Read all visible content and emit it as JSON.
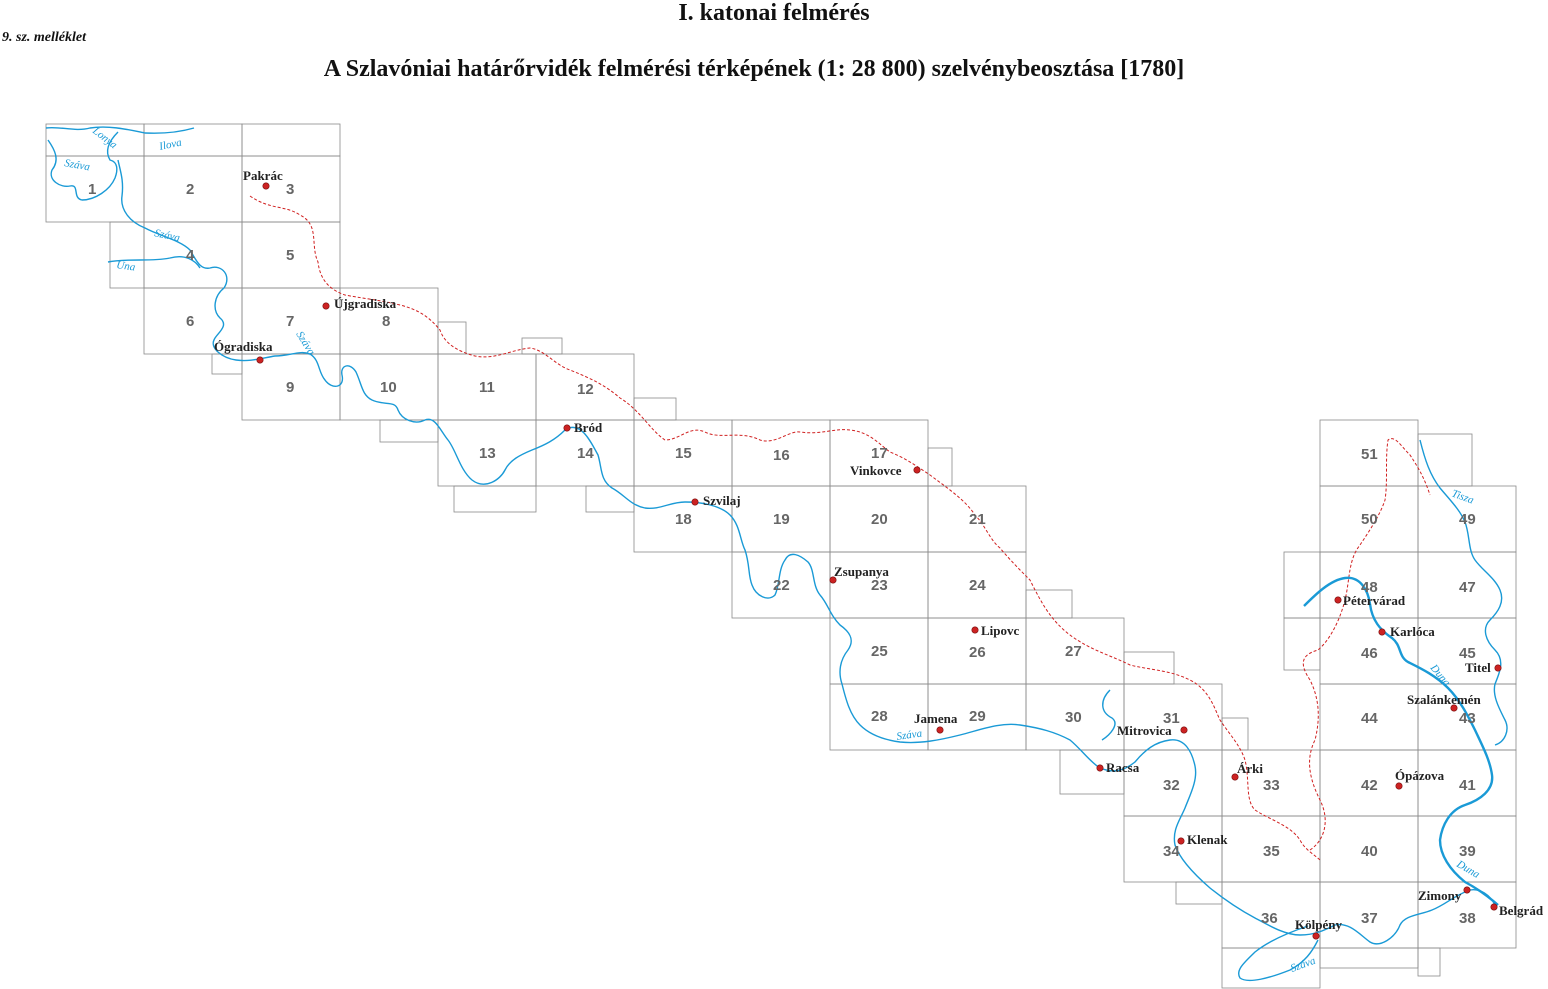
{
  "header": {
    "title": "I. katonai felmérés",
    "annex": "9. sz. melléklet",
    "subtitle": "A Szlavóniai határőrvidék  felmérési térképének (1: 28 800) szelvénybeosztása [1780]"
  },
  "colors": {
    "grid": "#8a8a8a",
    "river": "#1a9ad6",
    "border": "#d02020",
    "town": "#cc2222",
    "text": "#222222"
  },
  "sheets": [
    "1",
    "2",
    "3",
    "4",
    "5",
    "6",
    "7",
    "8",
    "9",
    "10",
    "11",
    "12",
    "13",
    "14",
    "15",
    "16",
    "17",
    "18",
    "19",
    "20",
    "21",
    "22",
    "23",
    "24",
    "25",
    "26",
    "27",
    "28",
    "29",
    "30",
    "31",
    "32",
    "33",
    "34",
    "35",
    "36",
    "37",
    "38",
    "39",
    "40",
    "41",
    "42",
    "43",
    "44",
    "45",
    "46",
    "47",
    "48",
    "49",
    "50",
    "51"
  ],
  "towns": [
    "Pakrác",
    "Újgradiska",
    "Ógradiska",
    "Bród",
    "Szvilaj",
    "Vinkovce",
    "Zsupanya",
    "Lipovc",
    "Jamena",
    "Mitrovica",
    "Racsa",
    "Árki",
    "Klenak",
    "Kölpény",
    "Pétervárad",
    "Karlóca",
    "Titel",
    "Szalánkemén",
    "Ópázova",
    "Zimony",
    "Belgrád"
  ],
  "rivers": [
    "Lonya",
    "Ilova",
    "Száva",
    "Száva",
    "Una",
    "Száva",
    "Száva",
    "Száva",
    "Tisza",
    "Duna",
    "Duna"
  ]
}
